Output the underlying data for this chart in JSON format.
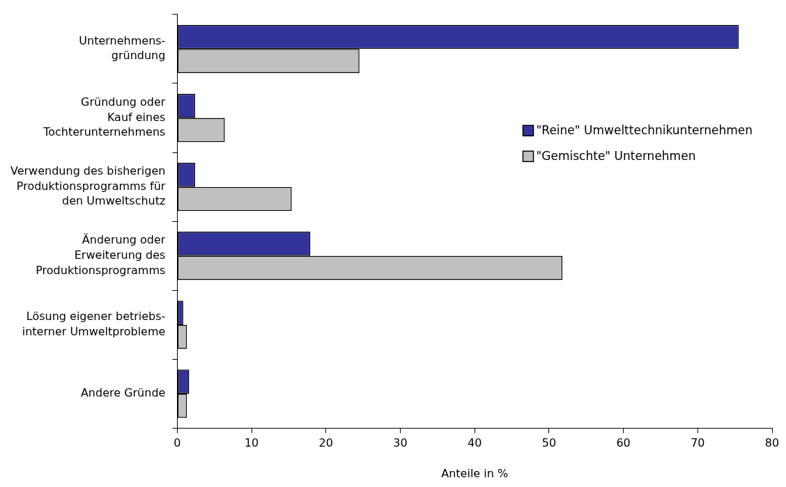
{
  "chart_data": {
    "type": "bar",
    "orientation": "horizontal",
    "xlabel": "Anteile in %",
    "categories": [
      "Unternehmens-\ngründung",
      "Gründung oder\nKauf eines\nTochterunternehmens",
      "Verwendung des bisherigen\nProduktionsprogramms für\nden Umweltschutz",
      "Änderung oder\nErweiterung des\nProduktionsprogramms",
      "Lösung eigener betriebs-\ninterner Umweltprobleme",
      "Andere Gründe"
    ],
    "series": [
      {
        "name": "\"Reine\" Umwelttechnikunternehmen",
        "color": "#333399",
        "values": [
          75.5,
          2.4,
          2.4,
          17.9,
          0.8,
          1.6
        ]
      },
      {
        "name": "\"Gemischte\" Unternehmen",
        "color": "#c0c0c0",
        "values": [
          24.5,
          6.4,
          15.4,
          51.8,
          1.3,
          1.3
        ]
      }
    ],
    "xlim": [
      0,
      80
    ],
    "xticks": [
      0,
      10,
      20,
      30,
      40,
      50,
      60,
      70,
      80
    ],
    "grid": false,
    "legend": "right"
  }
}
